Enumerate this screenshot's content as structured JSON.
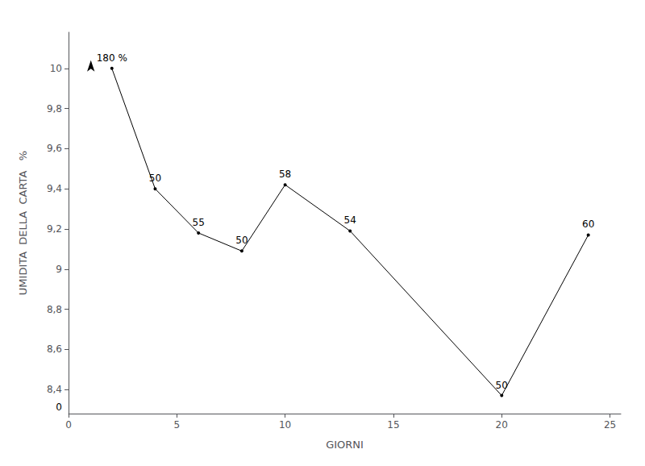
{
  "chart_data": {
    "type": "line",
    "xlabel": "GIORNI",
    "ylabel": "UMIDITA  DELLA  CARTA   %",
    "x": [
      2,
      4,
      6,
      8,
      10,
      13,
      20,
      24
    ],
    "values": [
      10.0,
      9.4,
      9.18,
      9.09,
      9.42,
      9.19,
      8.37,
      9.17
    ],
    "color": "#000000",
    "marker": "circle",
    "xlim": [
      0,
      25.5
    ],
    "ylim": [
      8.28,
      10.18
    ],
    "xticks": [
      0,
      5,
      10,
      15,
      20,
      25
    ],
    "yticks": [
      {
        "value": 8.4,
        "label": "8,4"
      },
      {
        "value": 8.6,
        "label": "8,6"
      },
      {
        "value": 8.8,
        "label": "8,8"
      },
      {
        "value": 9.0,
        "label": "9"
      },
      {
        "value": 9.2,
        "label": "9,2"
      },
      {
        "value": 9.4,
        "label": "9,4"
      },
      {
        "value": 9.6,
        "label": "9,6"
      },
      {
        "value": 9.8,
        "label": "9,8"
      },
      {
        "value": 10.0,
        "label": "10"
      }
    ],
    "annotations": [
      {
        "text": "180 %",
        "x": 2,
        "y": 10.0
      },
      {
        "text": "50",
        "x": 4,
        "y": 9.4
      },
      {
        "text": "55",
        "x": 6,
        "y": 9.18
      },
      {
        "text": "50",
        "x": 8,
        "y": 9.09
      },
      {
        "text": "58",
        "x": 10,
        "y": 9.42
      },
      {
        "text": "54",
        "x": 13,
        "y": 9.19
      },
      {
        "text": "50",
        "x": 20,
        "y": 8.37
      },
      {
        "text": "60",
        "x": 24,
        "y": 9.17
      },
      {
        "text": "0"
      }
    ],
    "grid": false
  }
}
